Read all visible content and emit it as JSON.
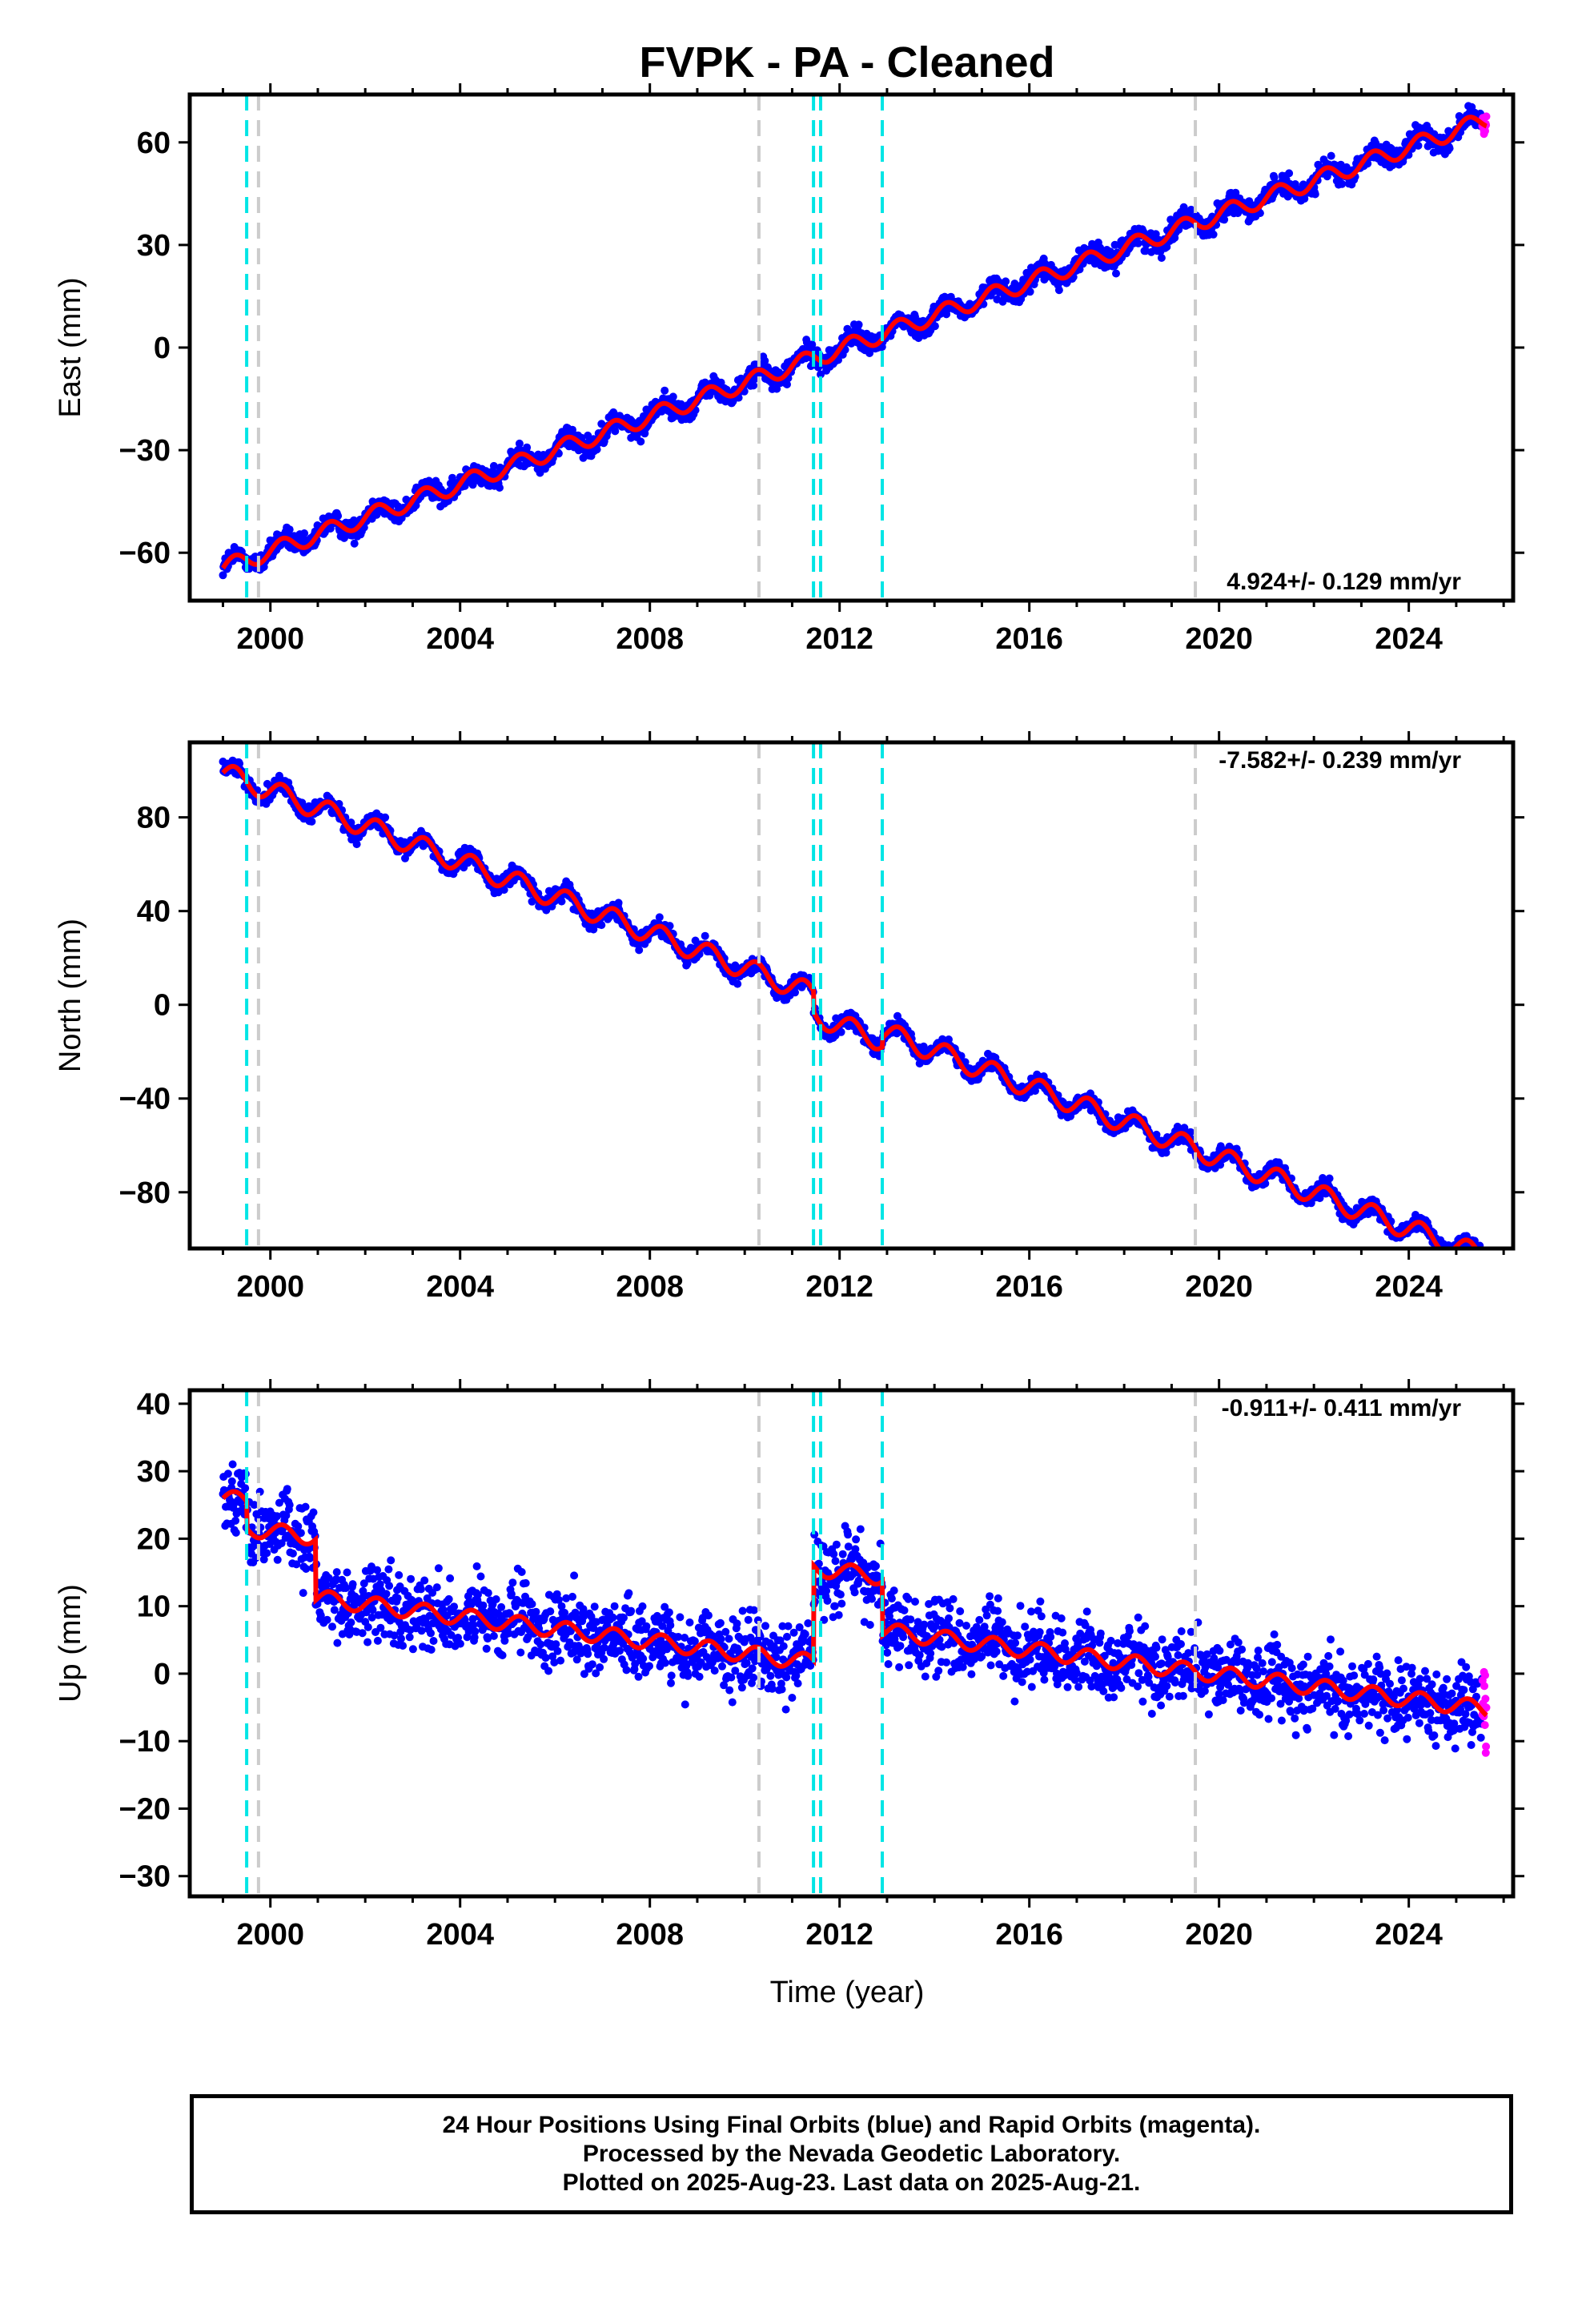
{
  "chart_data": {
    "title": "FVPK  - PA - Cleaned",
    "type": "scatter",
    "xlim": [
      1998.3,
      2026.2
    ],
    "x_ticks": [
      2000,
      2004,
      2008,
      2012,
      2016,
      2020,
      2024
    ],
    "xlabel": "Time (year)",
    "colors": {
      "final": "#0000ff",
      "rapid": "#ff00ff",
      "model": "#ff0000",
      "equipment_change": "#cccccc",
      "earthquake": "#00e5e5"
    },
    "equipment_changes": [
      1999.75,
      2010.3,
      2019.5
    ],
    "earthquakes": [
      1999.5,
      2011.45,
      2011.6,
      2012.9
    ],
    "data_start": 1999.0,
    "data_end": 2025.64,
    "rapid_start": 2025.55,
    "panels": [
      {
        "key": "east",
        "ylabel": "East (mm)",
        "ylim": [
          -74,
          74
        ],
        "y_ticks": [
          -60,
          -30,
          0,
          30,
          60
        ],
        "rate_text": "4.924+/- 0.129 mm/yr",
        "rate": 4.924,
        "offset_at_start": -64.5,
        "annual_amplitude": 2.5,
        "noise": 2.2,
        "breaks": []
      },
      {
        "key": "north",
        "ylabel": "North (mm)",
        "ylim": [
          -104,
          112
        ],
        "y_ticks": [
          -80,
          -40,
          0,
          40,
          80
        ],
        "rate_text": "-7.582+/- 0.239 mm/yr",
        "rate": -7.582,
        "offset_at_start": 99.0,
        "annual_amplitude": 4.5,
        "noise": 2.5,
        "breaks": [
          [
            2011.45,
            -9.0
          ],
          [
            2012.9,
            4.0
          ]
        ]
      },
      {
        "key": "up",
        "ylabel": "Up (mm)",
        "ylim": [
          -33,
          42
        ],
        "y_ticks": [
          -30,
          -20,
          -10,
          0,
          10,
          20,
          30,
          40
        ],
        "rate_text": "-0.911+/- 0.411 mm/yr",
        "rate": -0.911,
        "offset_at_start": 26.0,
        "annual_amplitude": 1.2,
        "noise": 3.8,
        "breaks": [
          [
            1999.5,
            -4.0
          ],
          [
            2000.95,
            -9.0
          ],
          [
            2011.45,
            14.0
          ],
          [
            2012.9,
            -8.0
          ]
        ]
      }
    ]
  },
  "footer": {
    "line1": "24 Hour Positions Using Final Orbits (blue) and Rapid Orbits (magenta).",
    "line2": "Processed by the Nevada Geodetic Laboratory.",
    "line3": "Plotted on 2025-Aug-23. Last data on 2025-Aug-21."
  }
}
